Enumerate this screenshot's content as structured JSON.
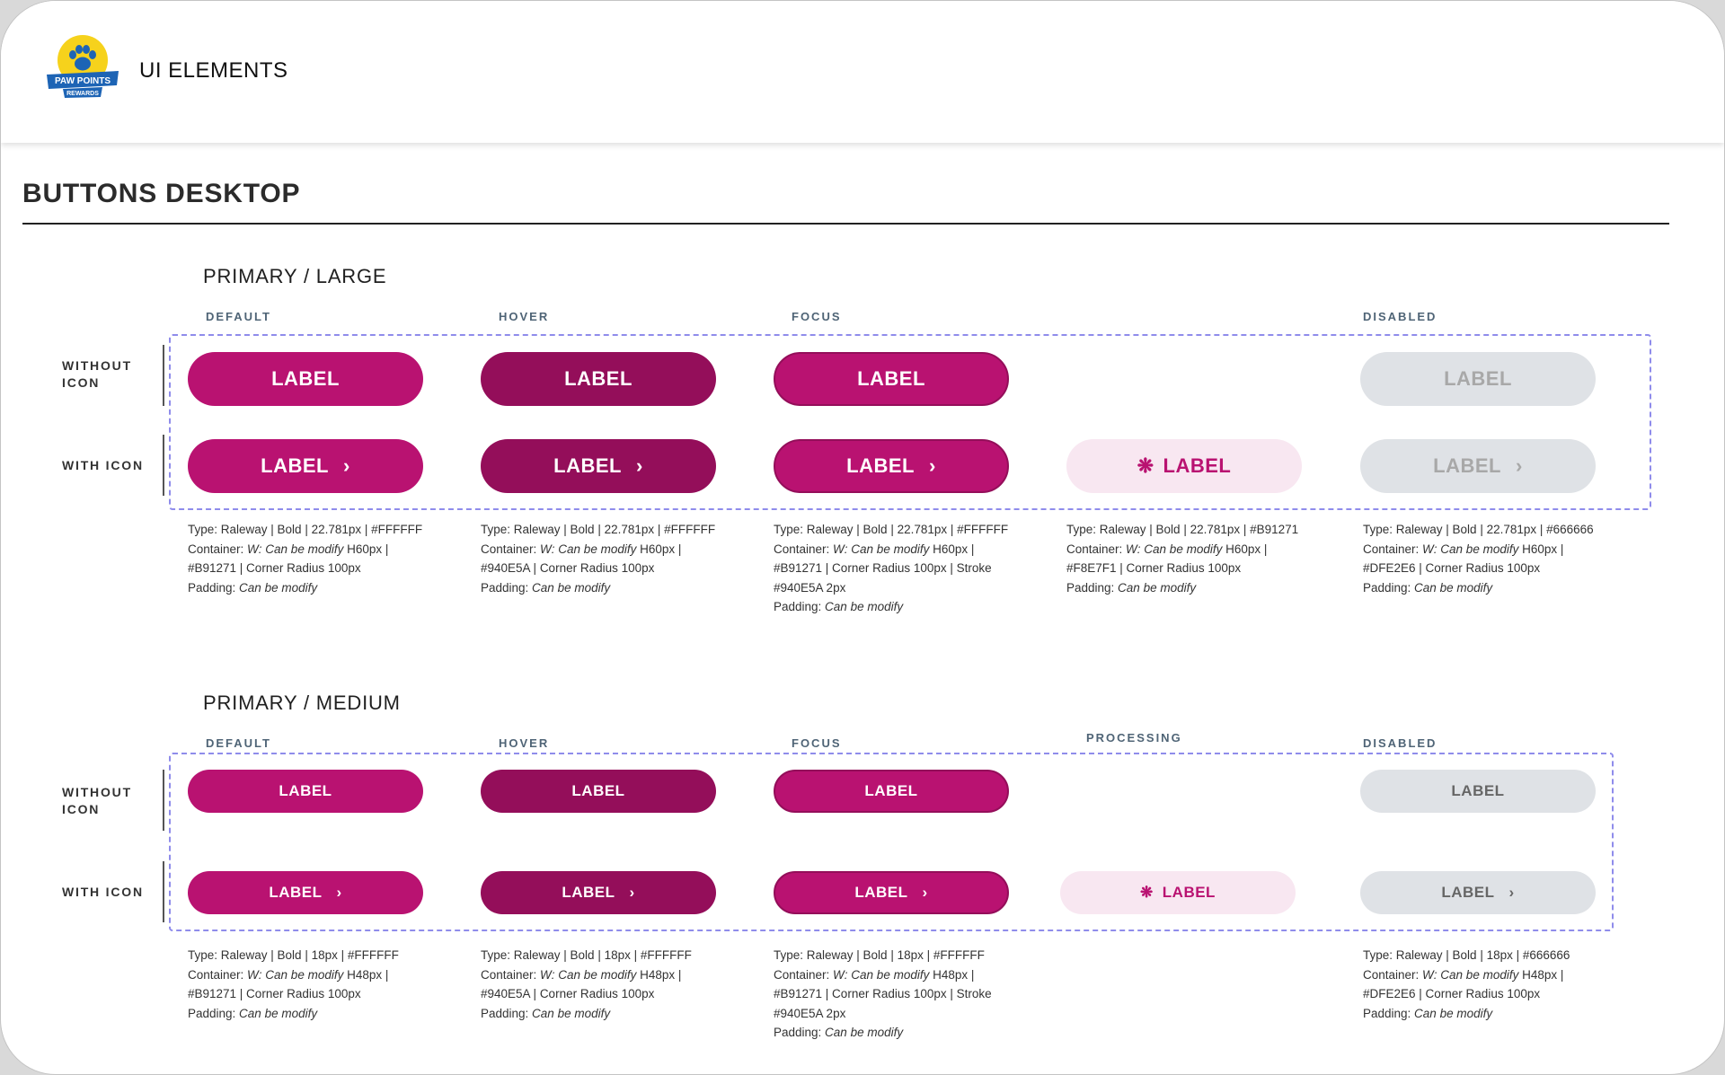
{
  "header": {
    "title": "UI ELEMENTS",
    "logo_text_1": "PAW POINTS",
    "logo_text_2": "REWARDS"
  },
  "section": {
    "title": "BUTTONS DESKTOP"
  },
  "row_labels": {
    "without_icon_1": "WITHOUT",
    "without_icon_2": "ICON",
    "with_icon": "WITH ICON"
  },
  "large": {
    "title": "PRIMARY / LARGE",
    "states": {
      "default": "DEFAULT",
      "hover": "HOVER",
      "focus": "FOCUS",
      "disabled": "DISABLED"
    },
    "label": "LABEL",
    "specs": {
      "default": {
        "type": "Type:  Raleway | Bold | 22.781px | #FFFFFF",
        "container_pre": "Container: ",
        "container_em": "W: Can be modify",
        "container_post": " H60px |",
        "line3": "#B91271 | Corner Radius 100px",
        "line4": "",
        "padding_pre": "Padding: ",
        "padding_em": "Can be modify"
      },
      "hover": {
        "type": "Type:  Raleway | Bold | 22.781px | #FFFFFF",
        "container_pre": "Container: ",
        "container_em": "W: Can be modify",
        "container_post": " H60px |",
        "line3": "#940E5A | Corner Radius 100px",
        "line4": "",
        "padding_pre": "Padding: ",
        "padding_em": "Can be modify"
      },
      "focus": {
        "type": "Type:  Raleway | Bold | 22.781px | #FFFFFF",
        "container_pre": "Container: ",
        "container_em": "W: Can be modify",
        "container_post": " H60px |",
        "line3": "#B91271 | Corner Radius 100px | Stroke",
        "line4": "#940E5A 2px",
        "padding_pre": "Padding: ",
        "padding_em": "Can be modify"
      },
      "processing": {
        "type": "Type:  Raleway | Bold | 22.781px | #B91271",
        "container_pre": "Container: ",
        "container_em": "W: Can be modify",
        "container_post": " H60px |",
        "line3": "#F8E7F1 | Corner Radius 100px",
        "line4": "",
        "padding_pre": "Padding: ",
        "padding_em": "Can be modify"
      },
      "disabled": {
        "type": "Type:  Raleway | Bold | 22.781px | #666666",
        "container_pre": "Container: ",
        "container_em": "W: Can be modify",
        "container_post": " H60px |",
        "line3": "#DFE2E6 | Corner Radius 100px",
        "line4": "",
        "padding_pre": "Padding: ",
        "padding_em": "Can be modify"
      }
    }
  },
  "medium": {
    "title": "PRIMARY / MEDIUM",
    "states": {
      "default": "DEFAULT",
      "hover": "HOVER",
      "focus": "FOCUS",
      "processing": "PROCESSING",
      "disabled": "DISABLED"
    },
    "label": "LABEL",
    "specs": {
      "default": {
        "type": "Type:  Raleway | Bold | 18px | #FFFFFF",
        "container_pre": "Container: ",
        "container_em": "W: Can be modify",
        "container_post": " H48px |",
        "line3": "#B91271 | Corner Radius 100px",
        "line4": "",
        "padding_pre": "Padding: ",
        "padding_em": "Can be modify"
      },
      "hover": {
        "type": "Type:  Raleway | Bold | 18px | #FFFFFF",
        "container_pre": "Container: ",
        "container_em": "W: Can be modify",
        "container_post": " H48px |",
        "line3": "#940E5A | Corner Radius 100px",
        "line4": "",
        "padding_pre": "Padding: ",
        "padding_em": "Can be modify"
      },
      "focus": {
        "type": "Type:  Raleway | Bold | 18px | #FFFFFF",
        "container_pre": "Container: ",
        "container_em": "W: Can be modify",
        "container_post": " H48px |",
        "line3": "#B91271 | Corner Radius 100px | Stroke",
        "line4": "#940E5A 2px",
        "padding_pre": "Padding: ",
        "padding_em": "Can be modify"
      },
      "disabled": {
        "type": "Type:  Raleway | Bold | 18px | #666666",
        "container_pre": "Container: ",
        "container_em": "W: Can be modify",
        "container_post": " H48px |",
        "line3": "#DFE2E6 | Corner Radius 100px",
        "line4": "",
        "padding_pre": "Padding: ",
        "padding_em": "Can be modify"
      }
    }
  },
  "icons": {
    "chevron": "chevron-right-icon",
    "spinner": "spinner-icon",
    "logo": "paw-logo-icon"
  },
  "colors": {
    "primary": "#B91271",
    "hover": "#940E5A",
    "processing_bg": "#F8E7F1",
    "disabled_bg": "#DFE2E6",
    "disabled_text": "#666666"
  }
}
